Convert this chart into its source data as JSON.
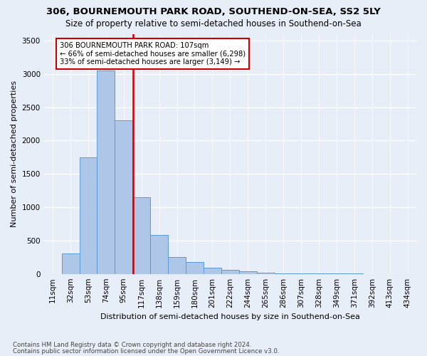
{
  "title": "306, BOURNEMOUTH PARK ROAD, SOUTHEND-ON-SEA, SS2 5LY",
  "subtitle": "Size of property relative to semi-detached houses in Southend-on-Sea",
  "xlabel": "Distribution of semi-detached houses by size in Southend-on-Sea",
  "ylabel": "Number of semi-detached properties",
  "footnote1": "Contains HM Land Registry data © Crown copyright and database right 2024.",
  "footnote2": "Contains public sector information licensed under the Open Government Licence v3.0.",
  "property_size": 107,
  "property_line_label": "306 BOURNEMOUTH PARK ROAD: 107sqm",
  "annotation_line2": "← 66% of semi-detached houses are smaller (6,298)",
  "annotation_line3": "33% of semi-detached houses are larger (3,149) →",
  "bar_color": "#aec6e8",
  "bar_edge_color": "#5b9bd5",
  "line_color": "#cc0000",
  "annotation_box_edge": "#cc0000",
  "annotation_box_fill": "white",
  "ylim": [
    0,
    3600
  ],
  "yticks": [
    0,
    500,
    1000,
    1500,
    2000,
    2500,
    3000,
    3500
  ],
  "bin_labels": [
    "11sqm",
    "32sqm",
    "53sqm",
    "74sqm",
    "95sqm",
    "117sqm",
    "138sqm",
    "159sqm",
    "180sqm",
    "201sqm",
    "222sqm",
    "244sqm",
    "265sqm",
    "286sqm",
    "307sqm",
    "328sqm",
    "349sqm",
    "371sqm",
    "392sqm",
    "413sqm",
    "434sqm"
  ],
  "counts": [
    0,
    310,
    1750,
    3050,
    2300,
    1150,
    580,
    250,
    180,
    90,
    60,
    35,
    20,
    12,
    8,
    5,
    3,
    2,
    1,
    1,
    0
  ],
  "background_color": "#e8eef7"
}
